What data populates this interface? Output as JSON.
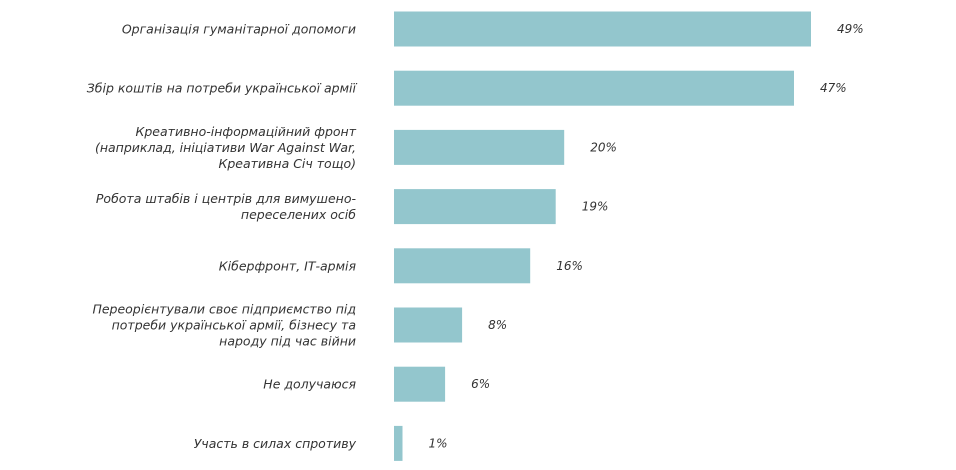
{
  "colors": {
    "bar": "#93c6cd",
    "text": "#333333",
    "background": "#ffffff"
  },
  "chart_data": {
    "type": "bar",
    "orientation": "horizontal",
    "value_unit": "%",
    "xlim": [
      0,
      100
    ],
    "grid": false,
    "legend": "none",
    "categories": [
      [
        "Організація гуманітарної допомоги"
      ],
      [
        "Збір коштів на потреби української армії"
      ],
      [
        "Креативно-інформаційний фронт",
        "(наприклад, ініціативи War Against War,",
        "Креативна Січ тощо)"
      ],
      [
        "Робота штабів і центрів для вимушено-",
        "переселених осіб"
      ],
      [
        "Кіберфронт, ІТ-армія"
      ],
      [
        "Переорієнтували своє підприємство під",
        "потреби української армії, бізнесу та",
        "народу під час війни"
      ],
      [
        "Не долучаюся"
      ],
      [
        "Участь в силах спротиву"
      ]
    ],
    "values": [
      49,
      47,
      20,
      19,
      16,
      8,
      6,
      1
    ],
    "value_labels": [
      "49%",
      "47%",
      "20%",
      "19%",
      "16%",
      "8%",
      "6%",
      "1%"
    ]
  }
}
